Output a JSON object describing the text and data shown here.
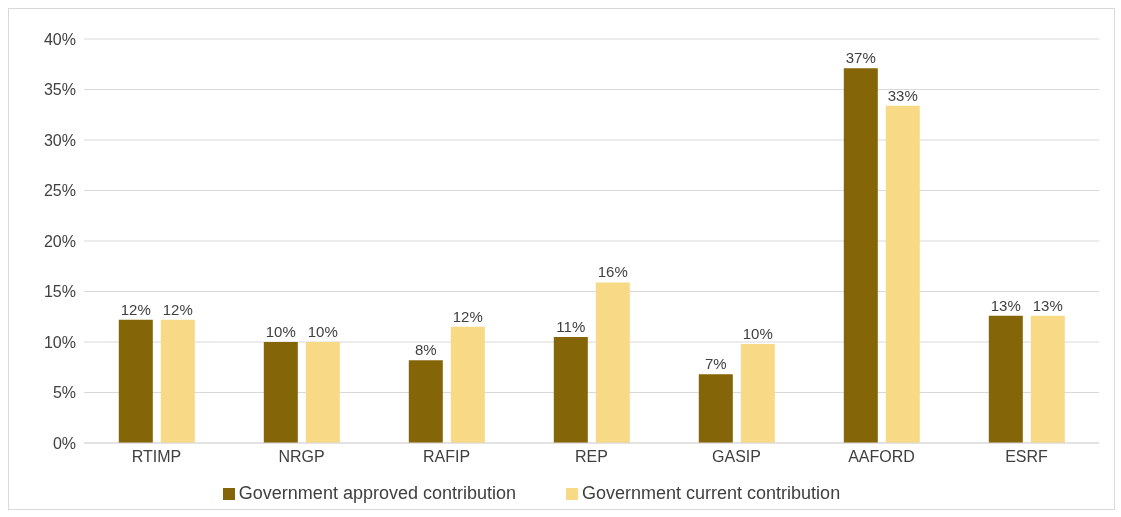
{
  "chart_data": {
    "type": "bar",
    "categories": [
      "RTIMP",
      "NRGP",
      "RAFIP",
      "REP",
      "GASIP",
      "AAFORD",
      "ESRF"
    ],
    "series": [
      {
        "name": "Government approved contribution",
        "color": "#846508",
        "values": [
          12.2,
          10.0,
          8.2,
          10.5,
          6.8,
          37.1,
          12.6
        ],
        "value_labels": [
          "12%",
          "10%",
          "8%",
          "11%",
          "7%",
          "37%",
          "13%"
        ]
      },
      {
        "name": "Government current contribution",
        "color": "#f7d986",
        "values": [
          12.2,
          10.0,
          11.5,
          15.9,
          9.8,
          33.4,
          12.6
        ],
        "value_labels": [
          "12%",
          "10%",
          "12%",
          "16%",
          "10%",
          "33%",
          "13%"
        ]
      }
    ],
    "ylim": [
      0,
      40
    ],
    "yticks": [
      {
        "value": 0,
        "label": "0%"
      },
      {
        "value": 5,
        "label": "5%"
      },
      {
        "value": 10,
        "label": "10%"
      },
      {
        "value": 15,
        "label": "15%"
      },
      {
        "value": 20,
        "label": "20%"
      },
      {
        "value": 25,
        "label": "25%"
      },
      {
        "value": 30,
        "label": "30%"
      },
      {
        "value": 35,
        "label": "35%"
      },
      {
        "value": 40,
        "label": "40%"
      }
    ],
    "grid": "y",
    "legend": "bottom"
  }
}
